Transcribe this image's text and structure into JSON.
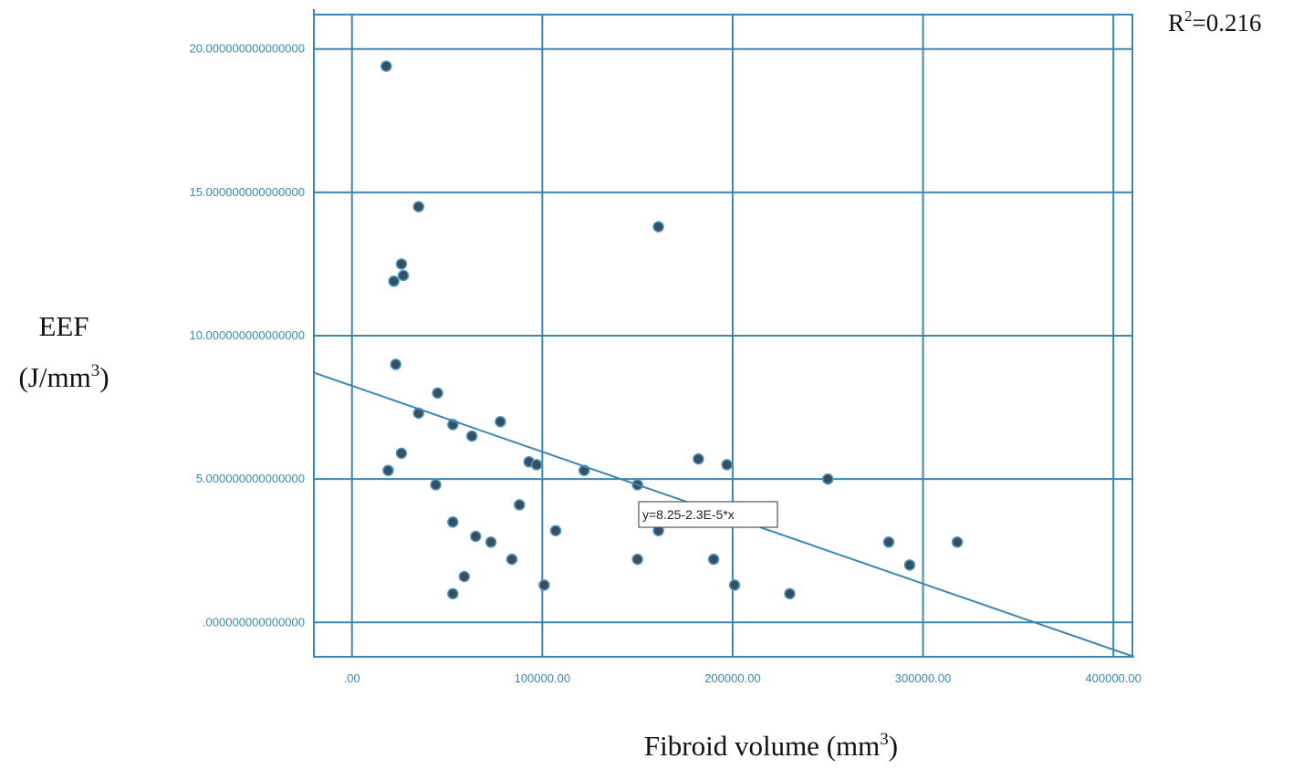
{
  "chart_data": {
    "type": "scatter",
    "xlabel": "Fibroid volume (mm",
    "xlabel_sup": "3",
    "xlabel_end": ")",
    "ylabel_line1": "EEF",
    "ylabel_line2": "(J/mm",
    "ylabel_sup": "3",
    "ylabel_end": ")",
    "r2_prefix": "R",
    "r2_sup": "2",
    "r2_value": "=0.216",
    "equation_label": "y=8.25-2.3E-5*x",
    "xlim": [
      -20000,
      410000
    ],
    "ylim": [
      -1.2,
      21.2
    ],
    "x_ticks": [
      {
        "value": 0,
        "label": ".00"
      },
      {
        "value": 100000,
        "label": "100000.00"
      },
      {
        "value": 200000,
        "label": "200000.00"
      },
      {
        "value": 300000,
        "label": "300000.00"
      },
      {
        "value": 400000,
        "label": "400000.00"
      }
    ],
    "y_ticks": [
      {
        "value": 0,
        "label": ".000000000000000"
      },
      {
        "value": 5,
        "label": "5.000000000000000"
      },
      {
        "value": 10,
        "label": "10.000000000000000"
      },
      {
        "value": 15,
        "label": "15.000000000000000"
      },
      {
        "value": 20,
        "label": "20.000000000000000"
      }
    ],
    "fit_line": {
      "intercept": 8.25,
      "slope": -2.3e-05
    },
    "grid": true,
    "colors": {
      "axis": "#3b87b4",
      "grid": "#3b87b4",
      "point_fill": "#3a4e5f",
      "point_stroke": "#4a9ac4",
      "fit_line": "#3b87b4"
    },
    "points": [
      {
        "x": 18000,
        "y": 19.4
      },
      {
        "x": 35000,
        "y": 14.5
      },
      {
        "x": 26000,
        "y": 12.5
      },
      {
        "x": 22000,
        "y": 11.9
      },
      {
        "x": 27000,
        "y": 12.1
      },
      {
        "x": 23000,
        "y": 9.0
      },
      {
        "x": 45000,
        "y": 8.0
      },
      {
        "x": 35000,
        "y": 7.3
      },
      {
        "x": 53000,
        "y": 6.9
      },
      {
        "x": 63000,
        "y": 6.5
      },
      {
        "x": 78000,
        "y": 7.0
      },
      {
        "x": 26000,
        "y": 5.9
      },
      {
        "x": 19000,
        "y": 5.3
      },
      {
        "x": 44000,
        "y": 4.8
      },
      {
        "x": 93000,
        "y": 5.6
      },
      {
        "x": 97000,
        "y": 5.5
      },
      {
        "x": 122000,
        "y": 5.3
      },
      {
        "x": 88000,
        "y": 4.1
      },
      {
        "x": 53000,
        "y": 3.5
      },
      {
        "x": 65000,
        "y": 3.0
      },
      {
        "x": 73000,
        "y": 2.8
      },
      {
        "x": 107000,
        "y": 3.2
      },
      {
        "x": 84000,
        "y": 2.2
      },
      {
        "x": 59000,
        "y": 1.6
      },
      {
        "x": 53000,
        "y": 1.0
      },
      {
        "x": 101000,
        "y": 1.3
      },
      {
        "x": 161000,
        "y": 13.8
      },
      {
        "x": 150000,
        "y": 4.8
      },
      {
        "x": 161000,
        "y": 3.2
      },
      {
        "x": 150000,
        "y": 2.2
      },
      {
        "x": 182000,
        "y": 5.7
      },
      {
        "x": 197000,
        "y": 5.5
      },
      {
        "x": 190000,
        "y": 2.2
      },
      {
        "x": 201000,
        "y": 1.3
      },
      {
        "x": 250000,
        "y": 5.0
      },
      {
        "x": 230000,
        "y": 1.0
      },
      {
        "x": 282000,
        "y": 2.8
      },
      {
        "x": 293000,
        "y": 2.0
      },
      {
        "x": 318000,
        "y": 2.8
      }
    ]
  }
}
